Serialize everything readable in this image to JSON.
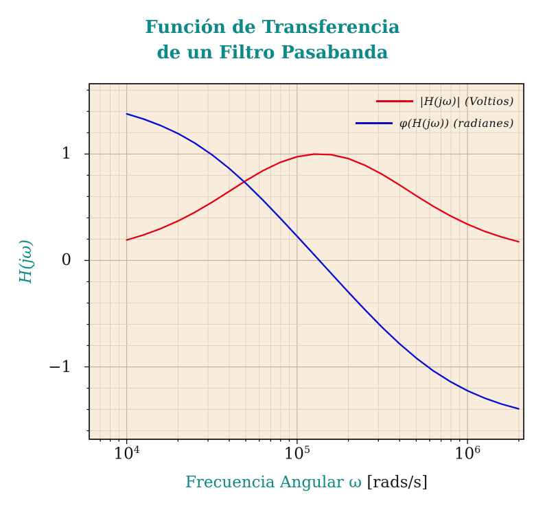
{
  "title": {
    "line1": "Función de Transferencia",
    "line2": "de un Filtro Pasabanda"
  },
  "y_axis": {
    "label": "H(jω)",
    "ticks": [
      {
        "value": 1,
        "label": "1"
      },
      {
        "value": 0,
        "label": "0"
      },
      {
        "value": -1,
        "label": "−1"
      }
    ]
  },
  "x_axis": {
    "label_main": "Frecuencia Angular ω",
    "label_unit": "[rads/s]",
    "ticks": [
      {
        "value": 10000,
        "base": "10",
        "exp": "4"
      },
      {
        "value": 100000,
        "base": "10",
        "exp": "5"
      },
      {
        "value": 1000000,
        "base": "10",
        "exp": "6"
      }
    ]
  },
  "legend": [
    {
      "label": "|H(jω)| (Voltios)",
      "color": "#e60012"
    },
    {
      "label": "φ(H(jω)) (radianes)",
      "color": "#0909d8"
    }
  ],
  "colors": {
    "accent_teal": "#0d8a88",
    "plot_background": "#f8ecdc",
    "grid_minor": "#d8cbb9",
    "grid_major": "#bdb09c",
    "frame": "#000000",
    "magnitude_red": "#e60012",
    "phase_blue": "#0909d8"
  },
  "chart_data": {
    "type": "line",
    "title": "Función de Transferencia de un Filtro Pasabanda",
    "xlabel": "Frecuencia Angular ω [rads/s]",
    "ylabel": "H(jω)",
    "x_scale": "log",
    "xlog_range": [
      3.78,
      6.33
    ],
    "ylim": [
      -1.68,
      1.66
    ],
    "y_grid_step": 0.2,
    "grid": true,
    "legend_position": "top-right",
    "x": [
      10000,
      12589,
      15849,
      19953,
      25119,
      31623,
      39811,
      50119,
      63096,
      79433,
      100000,
      125893,
      158489,
      199526,
      251189,
      316228,
      398107,
      501187,
      630957,
      794328,
      1000000,
      1258925,
      1584893,
      1995262
    ],
    "series": [
      {
        "name": "|H(jω)| (Voltios)",
        "color": "#e60012",
        "values": [
          0.192,
          0.24,
          0.299,
          0.37,
          0.452,
          0.546,
          0.648,
          0.75,
          0.844,
          0.921,
          0.974,
          0.999,
          0.993,
          0.957,
          0.893,
          0.808,
          0.71,
          0.607,
          0.508,
          0.418,
          0.34,
          0.274,
          0.22,
          0.176
        ]
      },
      {
        "name": "φ(H(jω)) (radianes)",
        "color": "#0909d8",
        "values": [
          1.377,
          1.328,
          1.267,
          1.193,
          1.102,
          0.993,
          0.866,
          0.723,
          0.566,
          0.399,
          0.227,
          0.053,
          -0.122,
          -0.296,
          -0.466,
          -0.63,
          -0.781,
          -0.918,
          -1.038,
          -1.139,
          -1.224,
          -1.293,
          -1.349,
          -1.394
        ]
      }
    ]
  }
}
